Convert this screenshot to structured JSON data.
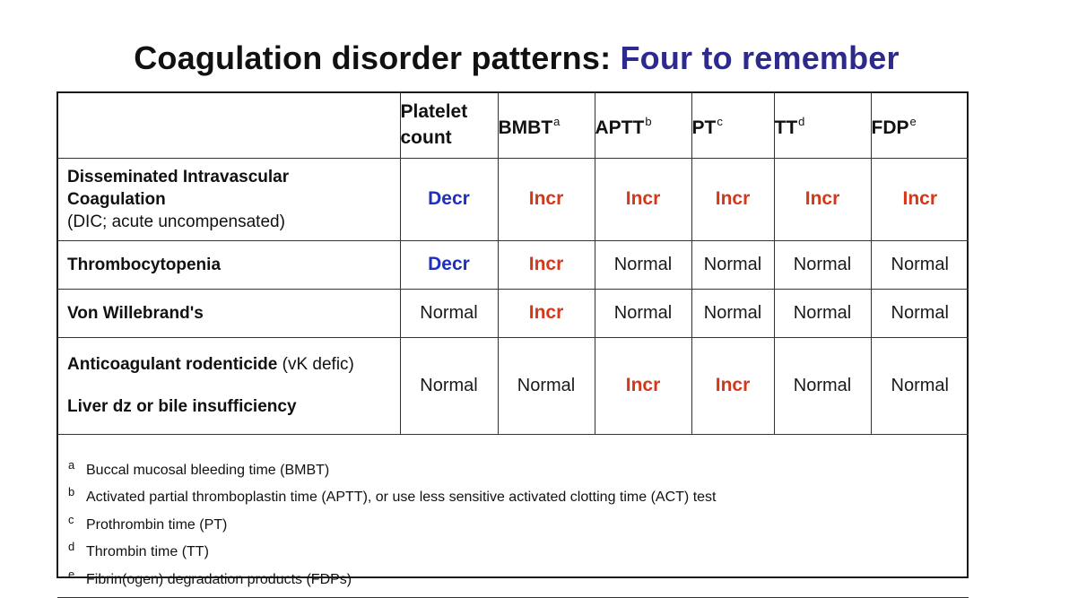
{
  "title": {
    "main": "Coagulation disorder patterns:",
    "accent": "Four to remember"
  },
  "table": {
    "headers": [
      {
        "label": "",
        "sup": ""
      },
      {
        "label": "Platelet count",
        "sup": ""
      },
      {
        "label": "BMBT",
        "sup": "a"
      },
      {
        "label": "APTT",
        "sup": "b"
      },
      {
        "label": "PT",
        "sup": "c"
      },
      {
        "label": "TT",
        "sup": "d"
      },
      {
        "label": "FDP",
        "sup": "e"
      }
    ],
    "rows": [
      {
        "label_line1": "Disseminated Intravascular",
        "label_line2": "Coagulation",
        "label_line3": "(DIC; acute uncompensated)",
        "values": [
          "Decr",
          "Incr",
          "Incr",
          "Incr",
          "Incr",
          "Incr"
        ]
      },
      {
        "label": "Thrombocytopenia",
        "values": [
          "Decr",
          "Incr",
          "Normal",
          "Normal",
          "Normal",
          "Normal"
        ]
      },
      {
        "label": "Von Willebrand's",
        "values": [
          "Normal",
          "Incr",
          "Normal",
          "Normal",
          "Normal",
          "Normal"
        ]
      },
      {
        "label_bold": "Anticoagulant rodenticide",
        "label_rest": " (vK defic)",
        "label_line2": "Liver dz or bile insufficiency",
        "values": [
          "Normal",
          "Normal",
          "Incr",
          "Incr",
          "Normal",
          "Normal"
        ]
      }
    ],
    "footnotes": [
      {
        "mark": "a",
        "text": "Buccal mucosal bleeding time (BMBT)"
      },
      {
        "mark": "b",
        "text": "Activated partial thromboplastin time  (APTT), or use less sensitive activated clotting time (ACT) test"
      },
      {
        "mark": "c",
        "text": "Prothrombin time (PT)"
      },
      {
        "mark": "d",
        "text": "Thrombin time (TT)"
      },
      {
        "mark": "e",
        "text": "Fibrin(ogen) degradation products (FDPs)"
      }
    ]
  },
  "colors": {
    "accent": "#2e2a8c",
    "increased": "#d4381a",
    "decreased": "#1f2fbe"
  }
}
